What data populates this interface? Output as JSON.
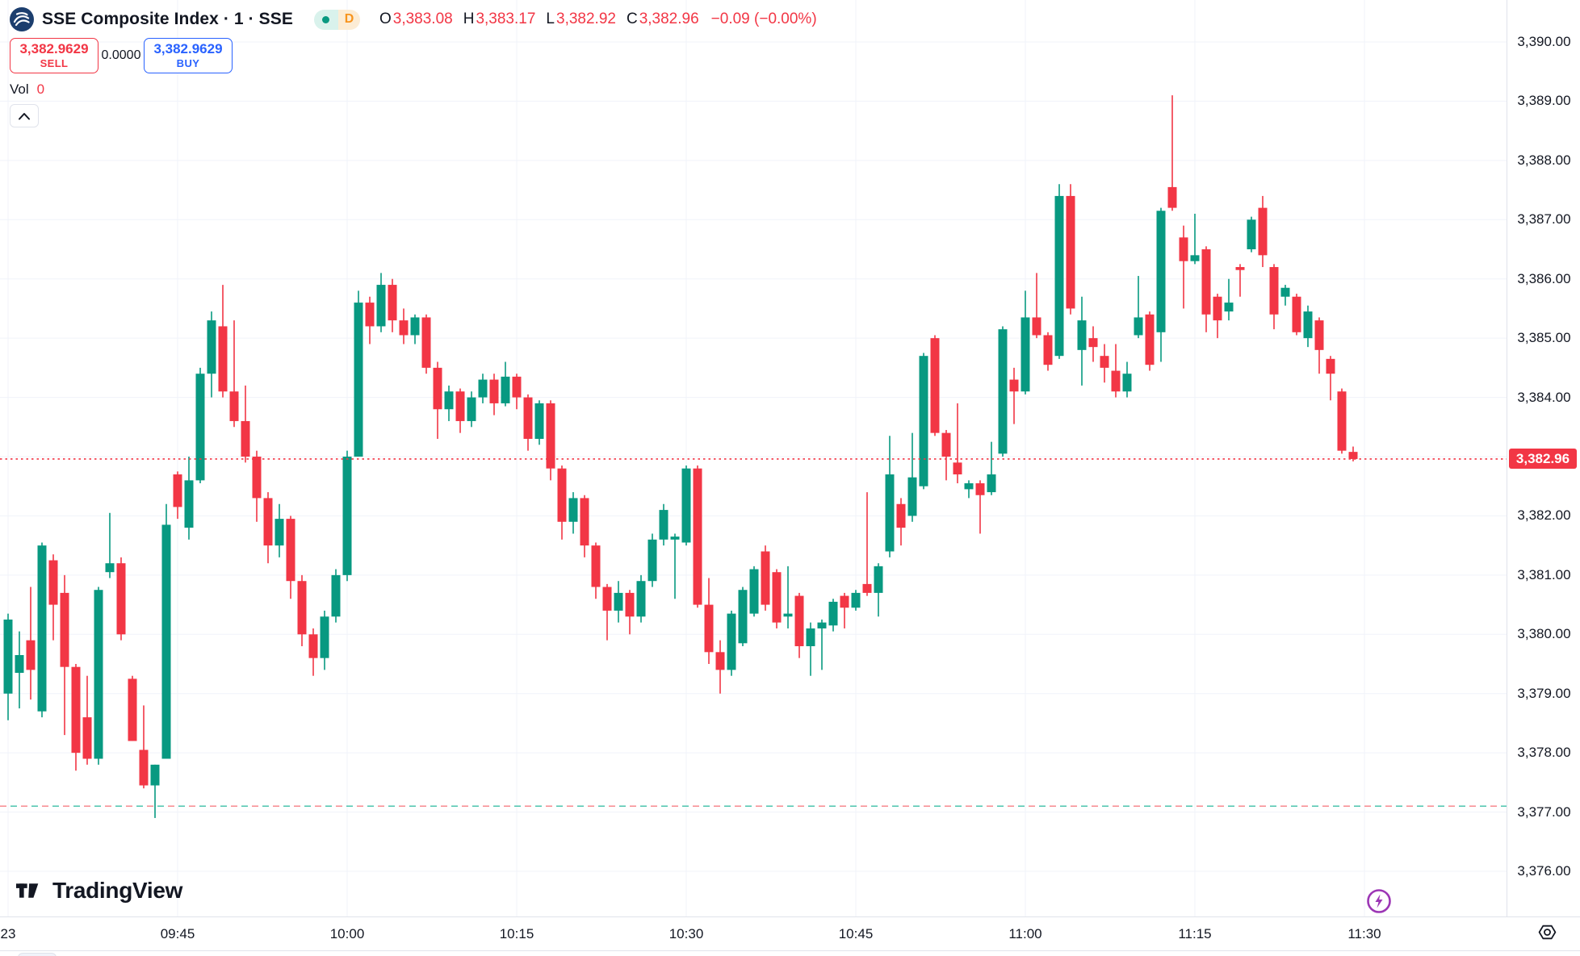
{
  "header": {
    "symbol_title": "SSE Composite Index · 1 · SSE",
    "market_status": "open",
    "interval_badge": "D",
    "ohlc": {
      "o_label": "O",
      "o": "3,383.08",
      "h_label": "H",
      "h": "3,383.17",
      "l_label": "L",
      "l": "3,382.92",
      "c_label": "C",
      "c": "3,382.96",
      "change": "−0.09 (−0.00%)"
    },
    "trade": {
      "sell_price": "3,382.9629",
      "sell_label": "SELL",
      "spread": "0.0000",
      "buy_price": "3,382.9629",
      "buy_label": "BUY"
    },
    "volume": {
      "label": "Vol",
      "value": "0"
    }
  },
  "footer": {
    "logo_text": "TradingView"
  },
  "colors": {
    "up": "#089981",
    "down": "#f23645",
    "buy_accent": "#2962ff",
    "text": "#131722",
    "grid": "#f0f3fa",
    "axis_border": "#e0e3eb",
    "current_price_bg": "#f23645",
    "ref_line_red": "#f78a8f",
    "ref_line_teal": "#4cc4ae",
    "lightning": "#9c36b5",
    "badge_interval": "#f7941e"
  },
  "chart_data": {
    "type": "candlestick",
    "title": "SSE Composite Index",
    "exchange": "SSE",
    "interval": "1 minute",
    "session_start": "09:30",
    "grid": true,
    "y_range": [
      3375.8,
      3390.3
    ],
    "y_ticks": [
      {
        "price": 3390,
        "label": "3,390.00"
      },
      {
        "price": 3389,
        "label": "3,389.00"
      },
      {
        "price": 3388,
        "label": "3,388.00"
      },
      {
        "price": 3387,
        "label": "3,387.00"
      },
      {
        "price": 3386,
        "label": "3,386.00"
      },
      {
        "price": 3385,
        "label": "3,385.00"
      },
      {
        "price": 3384,
        "label": "3,384.00"
      },
      {
        "price": 3383,
        "label": "3,383.00"
      },
      {
        "price": 3382,
        "label": "3,382.00"
      },
      {
        "price": 3381,
        "label": "3,381.00"
      },
      {
        "price": 3380,
        "label": "3,380.00"
      },
      {
        "price": 3379,
        "label": "3,379.00"
      },
      {
        "price": 3378,
        "label": "3,378.00"
      },
      {
        "price": 3377,
        "label": "3,377.00"
      },
      {
        "price": 3376,
        "label": "3,376.00"
      }
    ],
    "hidden_y_tick_prices": [
      3383
    ],
    "x_ticks": [
      {
        "min": 0,
        "label": "23"
      },
      {
        "min": 15,
        "label": "09:45"
      },
      {
        "min": 30,
        "label": "10:00"
      },
      {
        "min": 45,
        "label": "10:15"
      },
      {
        "min": 60,
        "label": "10:30"
      },
      {
        "min": 75,
        "label": "10:45"
      },
      {
        "min": 90,
        "label": "11:00"
      },
      {
        "min": 105,
        "label": "11:15"
      },
      {
        "min": 120,
        "label": "11:30"
      }
    ],
    "current_price": {
      "value": 3382.96,
      "label": "3,382.96"
    },
    "reference_line": {
      "price": 3377.1,
      "style": "dashed-red-teal"
    },
    "candles_format": [
      "open",
      "high",
      "low",
      "close"
    ],
    "candles": [
      [
        3379.0,
        3380.35,
        3378.55,
        3380.25
      ],
      [
        3379.35,
        3380.05,
        3378.75,
        3379.65
      ],
      [
        3379.9,
        3380.8,
        3378.9,
        3379.4
      ],
      [
        3378.7,
        3381.55,
        3378.6,
        3381.5
      ],
      [
        3381.25,
        3381.35,
        3379.9,
        3380.5
      ],
      [
        3380.7,
        3381.0,
        3378.3,
        3379.45
      ],
      [
        3379.45,
        3379.5,
        3377.7,
        3378.0
      ],
      [
        3378.6,
        3379.3,
        3377.8,
        3377.9
      ],
      [
        3377.9,
        3380.8,
        3377.8,
        3380.75
      ],
      [
        3381.05,
        3382.05,
        3380.95,
        3381.2
      ],
      [
        3381.2,
        3381.3,
        3379.9,
        3380.0
      ],
      [
        3379.25,
        3379.3,
        3378.2,
        3378.2
      ],
      [
        3378.05,
        3378.8,
        3377.4,
        3377.45
      ],
      [
        3377.45,
        3377.8,
        3376.9,
        3377.8
      ],
      [
        3377.9,
        3382.2,
        3377.9,
        3381.85
      ],
      [
        3382.7,
        3382.75,
        3381.95,
        3382.15
      ],
      [
        3381.8,
        3383.0,
        3381.6,
        3382.6
      ],
      [
        3382.6,
        3384.5,
        3382.55,
        3384.4
      ],
      [
        3384.4,
        3385.45,
        3384.0,
        3385.3
      ],
      [
        3385.2,
        3385.9,
        3384.0,
        3384.1
      ],
      [
        3384.1,
        3385.3,
        3383.5,
        3383.6
      ],
      [
        3383.6,
        3384.2,
        3382.9,
        3383.0
      ],
      [
        3383.0,
        3383.1,
        3381.9,
        3382.3
      ],
      [
        3382.3,
        3382.4,
        3381.2,
        3381.5
      ],
      [
        3381.5,
        3382.2,
        3381.3,
        3381.95
      ],
      [
        3381.95,
        3382.0,
        3380.6,
        3380.9
      ],
      [
        3380.9,
        3381.0,
        3379.8,
        3380.0
      ],
      [
        3380.0,
        3380.1,
        3379.3,
        3379.6
      ],
      [
        3379.6,
        3380.4,
        3379.4,
        3380.3
      ],
      [
        3380.3,
        3381.1,
        3380.2,
        3381.0
      ],
      [
        3381.0,
        3383.1,
        3380.9,
        3383.0
      ],
      [
        3383.0,
        3385.8,
        3383.0,
        3385.6
      ],
      [
        3385.6,
        3385.7,
        3384.9,
        3385.2
      ],
      [
        3385.2,
        3386.1,
        3385.1,
        3385.9
      ],
      [
        3385.9,
        3386.0,
        3385.1,
        3385.3
      ],
      [
        3385.3,
        3385.5,
        3384.9,
        3385.05
      ],
      [
        3385.05,
        3385.4,
        3384.9,
        3385.35
      ],
      [
        3385.35,
        3385.4,
        3384.4,
        3384.5
      ],
      [
        3384.5,
        3384.6,
        3383.3,
        3383.8
      ],
      [
        3383.8,
        3384.2,
        3383.6,
        3384.1
      ],
      [
        3384.1,
        3384.15,
        3383.4,
        3383.6
      ],
      [
        3383.6,
        3384.1,
        3383.5,
        3384.0
      ],
      [
        3384.0,
        3384.4,
        3383.9,
        3384.3
      ],
      [
        3384.3,
        3384.4,
        3383.7,
        3383.9
      ],
      [
        3383.9,
        3384.6,
        3383.85,
        3384.35
      ],
      [
        3384.35,
        3384.4,
        3383.8,
        3384.0
      ],
      [
        3384.0,
        3384.05,
        3383.1,
        3383.3
      ],
      [
        3383.3,
        3383.95,
        3383.2,
        3383.9
      ],
      [
        3383.9,
        3383.95,
        3382.6,
        3382.8
      ],
      [
        3382.8,
        3382.85,
        3381.6,
        3381.9
      ],
      [
        3381.9,
        3382.4,
        3381.7,
        3382.3
      ],
      [
        3382.3,
        3382.35,
        3381.3,
        3381.5
      ],
      [
        3381.5,
        3381.55,
        3380.6,
        3380.8
      ],
      [
        3380.8,
        3380.85,
        3379.9,
        3380.4
      ],
      [
        3380.4,
        3380.9,
        3380.2,
        3380.7
      ],
      [
        3380.7,
        3380.75,
        3380.0,
        3380.3
      ],
      [
        3380.3,
        3381.0,
        3380.2,
        3380.9
      ],
      [
        3380.9,
        3381.7,
        3380.8,
        3381.6
      ],
      [
        3381.6,
        3382.2,
        3381.5,
        3382.1
      ],
      [
        3381.6,
        3381.7,
        3380.6,
        3381.65
      ],
      [
        3381.55,
        3382.85,
        3381.5,
        3382.8
      ],
      [
        3382.8,
        3382.85,
        3380.45,
        3380.5
      ],
      [
        3380.5,
        3380.95,
        3379.5,
        3379.7
      ],
      [
        3379.7,
        3379.9,
        3379.0,
        3379.4
      ],
      [
        3379.4,
        3380.4,
        3379.3,
        3380.35
      ],
      [
        3379.85,
        3380.8,
        3379.8,
        3380.75
      ],
      [
        3380.35,
        3381.15,
        3380.3,
        3381.1
      ],
      [
        3381.4,
        3381.5,
        3380.4,
        3380.5
      ],
      [
        3381.05,
        3381.1,
        3380.1,
        3380.2
      ],
      [
        3380.3,
        3381.15,
        3380.1,
        3380.35
      ],
      [
        3380.65,
        3380.7,
        3379.6,
        3379.8
      ],
      [
        3379.8,
        3380.2,
        3379.3,
        3380.1
      ],
      [
        3380.1,
        3380.25,
        3379.4,
        3380.2
      ],
      [
        3380.15,
        3380.6,
        3380.05,
        3380.55
      ],
      [
        3380.65,
        3380.7,
        3380.1,
        3380.45
      ],
      [
        3380.45,
        3380.75,
        3380.4,
        3380.7
      ],
      [
        3380.85,
        3382.4,
        3380.65,
        3380.7
      ],
      [
        3380.7,
        3381.2,
        3380.3,
        3381.15
      ],
      [
        3381.4,
        3383.35,
        3381.3,
        3382.7
      ],
      [
        3382.2,
        3382.3,
        3381.5,
        3381.8
      ],
      [
        3382.0,
        3383.4,
        3381.9,
        3382.65
      ],
      [
        3382.5,
        3384.75,
        3382.45,
        3384.7
      ],
      [
        3385.0,
        3385.05,
        3383.35,
        3383.4
      ],
      [
        3383.4,
        3383.45,
        3382.6,
        3383.0
      ],
      [
        3382.9,
        3383.9,
        3382.55,
        3382.7
      ],
      [
        3382.45,
        3382.6,
        3382.3,
        3382.55
      ],
      [
        3382.55,
        3382.6,
        3381.7,
        3382.35
      ],
      [
        3382.4,
        3383.25,
        3382.35,
        3382.7
      ],
      [
        3383.05,
        3385.2,
        3383.0,
        3385.15
      ],
      [
        3384.3,
        3384.5,
        3383.55,
        3384.1
      ],
      [
        3384.1,
        3385.8,
        3384.05,
        3385.35
      ],
      [
        3385.35,
        3386.1,
        3385.0,
        3385.05
      ],
      [
        3385.05,
        3385.1,
        3384.45,
        3384.55
      ],
      [
        3384.7,
        3387.6,
        3384.65,
        3387.4
      ],
      [
        3387.4,
        3387.6,
        3385.4,
        3385.5
      ],
      [
        3384.8,
        3385.7,
        3384.2,
        3385.3
      ],
      [
        3385.0,
        3385.2,
        3384.6,
        3384.85
      ],
      [
        3384.7,
        3384.9,
        3384.25,
        3384.5
      ],
      [
        3384.45,
        3384.9,
        3384.0,
        3384.1
      ],
      [
        3384.1,
        3384.6,
        3384.0,
        3384.4
      ],
      [
        3385.05,
        3386.05,
        3385.0,
        3385.35
      ],
      [
        3385.4,
        3385.45,
        3384.45,
        3384.55
      ],
      [
        3385.1,
        3387.2,
        3384.6,
        3387.15
      ],
      [
        3387.55,
        3389.1,
        3387.15,
        3387.2
      ],
      [
        3386.7,
        3386.9,
        3385.5,
        3386.3
      ],
      [
        3386.3,
        3387.1,
        3386.25,
        3386.4
      ],
      [
        3386.5,
        3386.55,
        3385.1,
        3385.4
      ],
      [
        3385.7,
        3385.75,
        3385.0,
        3385.3
      ],
      [
        3385.45,
        3386.0,
        3385.3,
        3385.6
      ],
      [
        3386.2,
        3386.25,
        3385.7,
        3386.15
      ],
      [
        3386.5,
        3387.05,
        3386.45,
        3387.0
      ],
      [
        3387.2,
        3387.4,
        3386.2,
        3386.4
      ],
      [
        3386.2,
        3386.25,
        3385.15,
        3385.4
      ],
      [
        3385.7,
        3385.9,
        3385.55,
        3385.85
      ],
      [
        3385.7,
        3385.75,
        3385.05,
        3385.1
      ],
      [
        3385.0,
        3385.55,
        3384.85,
        3385.45
      ],
      [
        3385.3,
        3385.35,
        3384.4,
        3384.8
      ],
      [
        3384.65,
        3384.7,
        3383.95,
        3384.4
      ],
      [
        3384.1,
        3384.15,
        3383.05,
        3383.1
      ],
      [
        3383.08,
        3383.17,
        3382.92,
        3382.96
      ]
    ]
  }
}
